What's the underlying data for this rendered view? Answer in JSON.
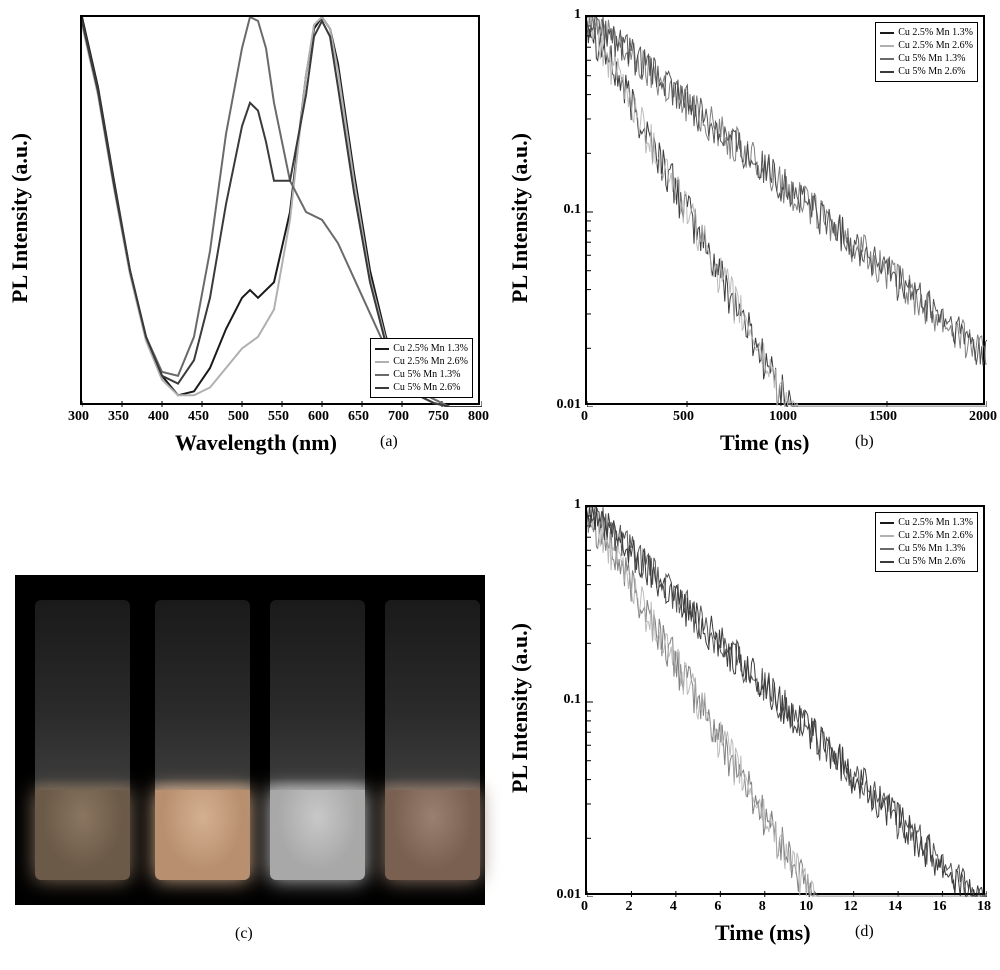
{
  "panel_a": {
    "type": "line",
    "ylabel": "PL Intensity (a.u.)",
    "xlabel": "Wavelength (nm)",
    "panel_tag": "(a)",
    "label_fontsize": 20,
    "tick_fontsize": 14,
    "xlim": [
      300,
      800
    ],
    "xtick_step": 50,
    "xticks": [
      300,
      350,
      400,
      450,
      500,
      550,
      600,
      650,
      700,
      750,
      800
    ],
    "background_color": "#ffffff",
    "border_color": "#000000",
    "legend": {
      "position": "bottom-right",
      "items": [
        {
          "label": "Cu 2.5%  Mn 1.3%",
          "color": "#1a1a1a"
        },
        {
          "label": "Cu 2.5%  Mn 2.6%",
          "color": "#b0b0b0"
        },
        {
          "label": "Cu   5%  Mn 1.3%",
          "color": "#6a6a6a"
        },
        {
          "label": "Cu   5%  Mn 2.6%",
          "color": "#3a3a3a"
        }
      ]
    },
    "series": [
      {
        "name": "Cu 2.5% Mn 1.3%",
        "color": "#1a1a1a",
        "line_width": 2,
        "points": [
          [
            300,
            1.0
          ],
          [
            320,
            0.82
          ],
          [
            340,
            0.58
          ],
          [
            360,
            0.35
          ],
          [
            380,
            0.18
          ],
          [
            400,
            0.08
          ],
          [
            420,
            0.03
          ],
          [
            440,
            0.04
          ],
          [
            460,
            0.1
          ],
          [
            480,
            0.2
          ],
          [
            500,
            0.28
          ],
          [
            510,
            0.3
          ],
          [
            520,
            0.28
          ],
          [
            540,
            0.32
          ],
          [
            560,
            0.5
          ],
          [
            580,
            0.85
          ],
          [
            590,
            0.97
          ],
          [
            600,
            1.0
          ],
          [
            610,
            0.97
          ],
          [
            620,
            0.88
          ],
          [
            640,
            0.6
          ],
          [
            660,
            0.35
          ],
          [
            680,
            0.18
          ],
          [
            700,
            0.08
          ],
          [
            720,
            0.03
          ],
          [
            740,
            0.01
          ],
          [
            760,
            0.0
          ],
          [
            800,
            0.0
          ]
        ]
      },
      {
        "name": "Cu 2.5% Mn 2.6%",
        "color": "#b0b0b0",
        "line_width": 2,
        "points": [
          [
            300,
            0.98
          ],
          [
            320,
            0.8
          ],
          [
            340,
            0.56
          ],
          [
            360,
            0.34
          ],
          [
            380,
            0.17
          ],
          [
            400,
            0.07
          ],
          [
            420,
            0.03
          ],
          [
            440,
            0.03
          ],
          [
            460,
            0.05
          ],
          [
            480,
            0.1
          ],
          [
            500,
            0.15
          ],
          [
            520,
            0.18
          ],
          [
            540,
            0.25
          ],
          [
            560,
            0.48
          ],
          [
            580,
            0.85
          ],
          [
            590,
            0.98
          ],
          [
            600,
            1.0
          ],
          [
            610,
            0.97
          ],
          [
            620,
            0.86
          ],
          [
            640,
            0.58
          ],
          [
            660,
            0.33
          ],
          [
            680,
            0.17
          ],
          [
            700,
            0.08
          ],
          [
            720,
            0.03
          ],
          [
            740,
            0.01
          ],
          [
            760,
            0.0
          ],
          [
            800,
            0.0
          ]
        ]
      },
      {
        "name": "Cu 5% Mn 1.3%",
        "color": "#6a6a6a",
        "line_width": 2,
        "points": [
          [
            300,
            0.99
          ],
          [
            320,
            0.81
          ],
          [
            340,
            0.57
          ],
          [
            360,
            0.35
          ],
          [
            380,
            0.18
          ],
          [
            400,
            0.09
          ],
          [
            420,
            0.08
          ],
          [
            440,
            0.18
          ],
          [
            460,
            0.4
          ],
          [
            480,
            0.7
          ],
          [
            500,
            0.92
          ],
          [
            510,
            1.0
          ],
          [
            520,
            0.99
          ],
          [
            530,
            0.92
          ],
          [
            540,
            0.78
          ],
          [
            560,
            0.58
          ],
          [
            580,
            0.5
          ],
          [
            600,
            0.48
          ],
          [
            620,
            0.42
          ],
          [
            640,
            0.33
          ],
          [
            660,
            0.24
          ],
          [
            680,
            0.15
          ],
          [
            700,
            0.08
          ],
          [
            720,
            0.04
          ],
          [
            740,
            0.02
          ],
          [
            760,
            0.0
          ],
          [
            800,
            0.0
          ]
        ]
      },
      {
        "name": "Cu 5% Mn 2.6%",
        "color": "#3a3a3a",
        "line_width": 2,
        "points": [
          [
            300,
            0.99
          ],
          [
            320,
            0.81
          ],
          [
            340,
            0.57
          ],
          [
            360,
            0.35
          ],
          [
            380,
            0.18
          ],
          [
            400,
            0.08
          ],
          [
            420,
            0.06
          ],
          [
            440,
            0.12
          ],
          [
            460,
            0.28
          ],
          [
            480,
            0.52
          ],
          [
            500,
            0.72
          ],
          [
            510,
            0.78
          ],
          [
            520,
            0.76
          ],
          [
            530,
            0.68
          ],
          [
            540,
            0.58
          ],
          [
            560,
            0.58
          ],
          [
            580,
            0.8
          ],
          [
            590,
            0.95
          ],
          [
            600,
            0.99
          ],
          [
            610,
            0.95
          ],
          [
            620,
            0.82
          ],
          [
            640,
            0.55
          ],
          [
            660,
            0.32
          ],
          [
            680,
            0.16
          ],
          [
            700,
            0.08
          ],
          [
            720,
            0.03
          ],
          [
            740,
            0.01
          ],
          [
            760,
            0.0
          ],
          [
            800,
            0.0
          ]
        ]
      }
    ]
  },
  "panel_b": {
    "type": "line-log",
    "ylabel": "PL Intensity (a.u.)",
    "xlabel": "Time (ns)",
    "panel_tag": "(b)",
    "label_fontsize": 20,
    "xlim": [
      0,
      2000
    ],
    "xticks": [
      0,
      500,
      1000,
      1500,
      2000
    ],
    "ylim": [
      0.01,
      1
    ],
    "yticks": [
      0.01,
      0.1,
      1
    ],
    "ytick_labels": [
      "0.01",
      "0.1",
      "1"
    ],
    "yscale": "log",
    "legend": {
      "position": "top-right",
      "items": [
        {
          "label": "Cu 2.5%  Mn 1.3%",
          "color": "#1a1a1a"
        },
        {
          "label": "Cu 2.5%  Mn 2.6%",
          "color": "#b0b0b0"
        },
        {
          "label": "Cu   5%  Mn 1.3%",
          "color": "#6a6a6a"
        },
        {
          "label": "Cu   5%  Mn 2.6%",
          "color": "#3a3a3a"
        }
      ]
    },
    "decay_groups": [
      {
        "colors": [
          "#1a1a1a",
          "#b0b0b0"
        ],
        "tau": 220,
        "noise": 0.25
      },
      {
        "colors": [
          "#6a6a6a",
          "#3a3a3a"
        ],
        "tau": 500,
        "noise": 0.22
      }
    ]
  },
  "panel_c": {
    "type": "photo",
    "panel_tag": "(c)",
    "background_color": "#000000",
    "vials": [
      {
        "liquid_color": "#6b5a48",
        "glow": "#8a7560"
      },
      {
        "liquid_color": "#b89070",
        "glow": "#d4b090"
      },
      {
        "liquid_color": "#a8a8a8",
        "glow": "#c8c8c8"
      },
      {
        "liquid_color": "#7a6050",
        "glow": "#9a8070"
      }
    ]
  },
  "panel_d": {
    "type": "line-log",
    "ylabel": "PL Intensity (a.u.)",
    "xlabel": "Time (ms)",
    "panel_tag": "(d)",
    "label_fontsize": 20,
    "xlim": [
      0,
      18
    ],
    "xticks": [
      0,
      2,
      4,
      6,
      8,
      10,
      12,
      14,
      16,
      18
    ],
    "ylim": [
      0.01,
      1
    ],
    "yticks": [
      0.01,
      0.1,
      1
    ],
    "ytick_labels": [
      "0.01",
      "0.1",
      "1"
    ],
    "yscale": "log",
    "legend": {
      "position": "top-right",
      "items": [
        {
          "label": "Cu 2.5%  Mn 1.3%",
          "color": "#1a1a1a"
        },
        {
          "label": "Cu 2.5%  Mn 2.6%",
          "color": "#b0b0b0"
        },
        {
          "label": "Cu   5%  Mn 1.3%",
          "color": "#6a6a6a"
        },
        {
          "label": "Cu   5%  Mn 2.6%",
          "color": "#3a3a3a"
        }
      ]
    },
    "decay_groups": [
      {
        "colors": [
          "#6a6a6a",
          "#b0b0b0"
        ],
        "tau": 2.2,
        "noise": 0.25
      },
      {
        "colors": [
          "#1a1a1a",
          "#3a3a3a"
        ],
        "tau": 3.8,
        "noise": 0.22
      }
    ]
  }
}
